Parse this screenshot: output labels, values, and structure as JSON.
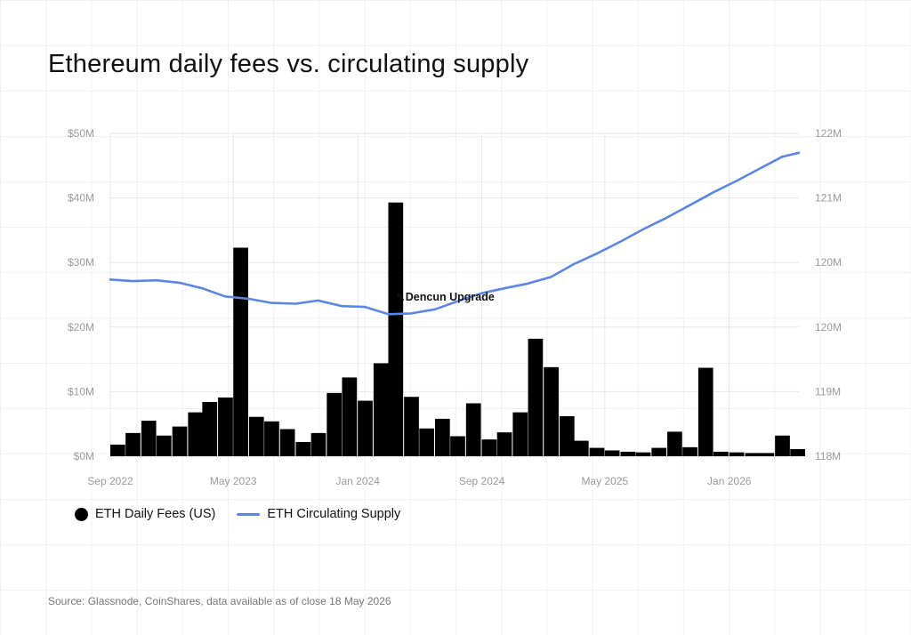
{
  "header": {
    "title": "Ethereum daily fees vs. circulating supply"
  },
  "footer": {
    "source": "Source: Glassnode, CoinShares, data available as of close 18 May 2026"
  },
  "colors": {
    "fees_bar": "#000000",
    "supply_line": "#5b86e5",
    "grid": "#e6e6e6",
    "tick_text": "#9a9a9a"
  },
  "chart_data": {
    "type": "bar+line",
    "grid": true,
    "legend_placement": "bottom-left",
    "x_start": "Sep 2022",
    "x_end": "May 2026",
    "x_ticks": [
      "Sep 2022",
      "May 2023",
      "Jan 2024",
      "Sep 2024",
      "May 2025",
      "Jan 2026"
    ],
    "y_left": {
      "min": 0,
      "max": 50000000,
      "ticks": [
        "$0M",
        "$10M",
        "$20M",
        "$30M",
        "$40M",
        "$50M"
      ]
    },
    "y_right": {
      "min": 118000000,
      "max": 122000000,
      "ticks": [
        "118M",
        "119M",
        "120M",
        "120M",
        "121M",
        "122M"
      ]
    },
    "series": [
      {
        "name": "ETH Daily Fees (US)",
        "type": "bar",
        "axis": "left",
        "unit": "USD",
        "dates": [
          "2022-09-01",
          "2022-10-01",
          "2022-11-01",
          "2022-12-01",
          "2023-01-01",
          "2023-02-01",
          "2023-03-01",
          "2023-04-01",
          "2023-05-01",
          "2023-06-01",
          "2023-07-01",
          "2023-08-01",
          "2023-09-01",
          "2023-10-01",
          "2023-11-01",
          "2023-12-01",
          "2024-01-01",
          "2024-02-01",
          "2024-03-01",
          "2024-04-01",
          "2024-05-01",
          "2024-06-01",
          "2024-07-01",
          "2024-08-01",
          "2024-09-01",
          "2024-10-01",
          "2024-11-01",
          "2024-12-01",
          "2025-01-01",
          "2025-02-01",
          "2025-03-01",
          "2025-04-01",
          "2025-05-01",
          "2025-06-01",
          "2025-07-01",
          "2025-08-01",
          "2025-09-01",
          "2025-10-01",
          "2025-11-01",
          "2025-12-01",
          "2026-01-01",
          "2026-02-01",
          "2026-03-01",
          "2026-04-01",
          "2026-05-01"
        ],
        "values": [
          1800000,
          3600000,
          5500000,
          3200000,
          4600000,
          6800000,
          8400000,
          9100000,
          32300000,
          6100000,
          5400000,
          4200000,
          2200000,
          3600000,
          9800000,
          12200000,
          8600000,
          14400000,
          39300000,
          9200000,
          4300000,
          5800000,
          3100000,
          8200000,
          2600000,
          3700000,
          6800000,
          18200000,
          13800000,
          6200000,
          2400000,
          1300000,
          900000,
          700000,
          600000,
          1300000,
          3800000,
          1400000,
          13700000,
          700000,
          600000,
          500000,
          500000,
          3200000,
          1100000
        ]
      },
      {
        "name": "ETH Circulating Supply",
        "type": "line",
        "axis": "right",
        "unit": "ETH",
        "dates": [
          "2022-09-01",
          "2022-10-15",
          "2022-12-01",
          "2023-01-15",
          "2023-03-01",
          "2023-04-15",
          "2023-06-01",
          "2023-07-15",
          "2023-09-01",
          "2023-10-15",
          "2023-12-01",
          "2024-01-15",
          "2024-03-01",
          "2024-04-15",
          "2024-06-01",
          "2024-07-15",
          "2024-09-01",
          "2024-10-15",
          "2024-12-01",
          "2025-01-15",
          "2025-03-01",
          "2025-04-15",
          "2025-06-01",
          "2025-07-15",
          "2025-09-01",
          "2025-10-15",
          "2025-12-01",
          "2026-01-15",
          "2026-03-01",
          "2026-04-15",
          "2026-05-18"
        ],
        "values": [
          120190000,
          120170000,
          120180000,
          120150000,
          120080000,
          119980000,
          119950000,
          119900000,
          119890000,
          119930000,
          119860000,
          119850000,
          119760000,
          119770000,
          119820000,
          119920000,
          120020000,
          120080000,
          120140000,
          120220000,
          120380000,
          120510000,
          120660000,
          120810000,
          120960000,
          121110000,
          121270000,
          121410000,
          121560000,
          121710000,
          121760000
        ]
      }
    ],
    "annotations": [
      {
        "text": "↖Dencun Upgrade",
        "date": "2024-03-13"
      }
    ]
  }
}
